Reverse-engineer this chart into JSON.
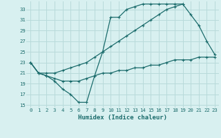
{
  "xlabel": "Humidex (Indice chaleur)",
  "bg_color": "#d8f0f0",
  "grid_color": "#b8dada",
  "line_color": "#1a6b6b",
  "xlim": [
    -0.5,
    23.5
  ],
  "ylim": [
    14.5,
    34.5
  ],
  "yticks": [
    15,
    17,
    19,
    21,
    23,
    25,
    27,
    29,
    31,
    33
  ],
  "xticks": [
    0,
    1,
    2,
    3,
    4,
    5,
    6,
    7,
    8,
    9,
    10,
    11,
    12,
    13,
    14,
    15,
    16,
    17,
    18,
    19,
    20,
    21,
    22,
    23
  ],
  "line1_x": [
    0,
    1,
    2,
    3,
    4,
    5,
    6,
    7,
    8,
    9,
    10,
    11,
    12,
    13,
    14,
    15,
    16,
    17,
    18,
    19
  ],
  "line1_y": [
    23,
    21,
    20.5,
    19.5,
    18,
    17,
    15.5,
    15.5,
    20.5,
    25,
    31.5,
    31.5,
    33,
    33.5,
    34,
    34,
    34,
    34,
    34,
    34
  ],
  "line2_x": [
    0,
    1,
    2,
    3,
    4,
    5,
    6,
    7,
    8,
    9,
    10,
    11,
    12,
    13,
    14,
    15,
    16,
    17,
    18,
    19,
    20,
    21,
    22,
    23
  ],
  "line2_y": [
    23,
    21,
    21,
    21,
    21.5,
    22,
    22.5,
    23,
    24,
    25,
    26,
    27,
    28,
    29,
    30,
    31,
    32,
    33,
    33.5,
    34,
    32,
    30,
    27,
    24.5
  ],
  "line3_x": [
    0,
    1,
    2,
    3,
    4,
    5,
    6,
    7,
    8,
    9,
    10,
    11,
    12,
    13,
    14,
    15,
    16,
    17,
    18,
    19,
    20,
    21,
    22,
    23
  ],
  "line3_y": [
    23,
    21,
    20.5,
    20,
    19.5,
    19.5,
    19.5,
    20,
    20.5,
    21,
    21,
    21.5,
    21.5,
    22,
    22,
    22.5,
    22.5,
    23,
    23.5,
    23.5,
    23.5,
    24,
    24,
    24
  ]
}
